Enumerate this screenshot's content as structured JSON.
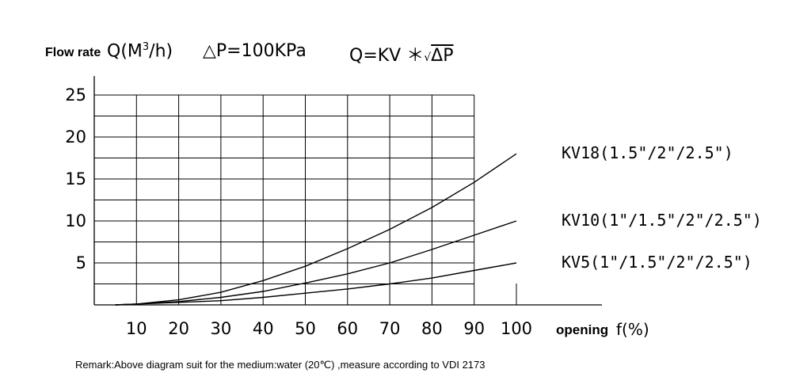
{
  "chart_data": {
    "type": "line",
    "title": "",
    "ylabel_prefix": "Flow rate",
    "ylabel_unit": "Q(M",
    "ylabel_unit_sup": "3",
    "ylabel_unit_end": "/h)",
    "condition": "△P=100KPa",
    "formula_prefix": "Q=KV ＊",
    "formula_root": "√",
    "formula_radicand": "ΔP",
    "xlabel_prefix": "opening",
    "xlabel_unit": "f(%)",
    "x_ticks": [
      "10",
      "20",
      "30",
      "40",
      "50",
      "60",
      "70",
      "80",
      "90",
      "100"
    ],
    "y_ticks": [
      "5",
      "10",
      "15",
      "20",
      "25"
    ],
    "xlim": [
      0,
      100
    ],
    "ylim": [
      0,
      25
    ],
    "grid": true,
    "series": [
      {
        "name": "KV18(1.5\"/2\"/2.5\")",
        "x": [
          5,
          10,
          20,
          30,
          40,
          50,
          60,
          70,
          80,
          90,
          100
        ],
        "y": [
          0,
          0.1,
          0.6,
          1.5,
          2.9,
          4.6,
          6.7,
          9.0,
          11.6,
          14.6,
          18.0
        ]
      },
      {
        "name": "KV10(1\"/1.5\"/2\"/2.5\")",
        "x": [
          5,
          10,
          20,
          30,
          40,
          50,
          60,
          70,
          80,
          90,
          100
        ],
        "y": [
          0,
          0.1,
          0.4,
          0.9,
          1.6,
          2.6,
          3.7,
          5.0,
          6.6,
          8.3,
          10.0
        ]
      },
      {
        "name": "KV5(1\"/1.5\"/2\"/2.5\")",
        "x": [
          5,
          10,
          20,
          30,
          40,
          50,
          60,
          70,
          80,
          90,
          100
        ],
        "y": [
          0,
          0.1,
          0.3,
          0.5,
          0.9,
          1.4,
          1.9,
          2.5,
          3.2,
          4.1,
          5.0
        ]
      }
    ]
  },
  "remark": "Remark:Above diagram suit for the medium:water   (20℃)  ,measure according to VDI 2173"
}
